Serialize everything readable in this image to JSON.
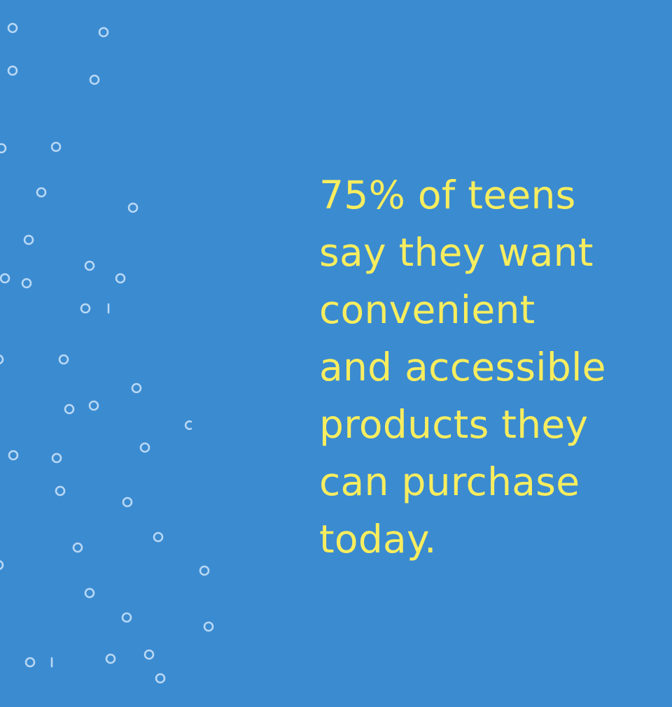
{
  "colors": {
    "background": "#3b8bd1",
    "text": "#f7ed5e",
    "bubbles": "#b9d8f4"
  },
  "statement": {
    "lines": [
      "75% of teens",
      "say they want",
      "convenient",
      "and accessible",
      "products they",
      "can purchase",
      "today."
    ]
  },
  "decoration": {
    "icon": "bubble-icon"
  }
}
